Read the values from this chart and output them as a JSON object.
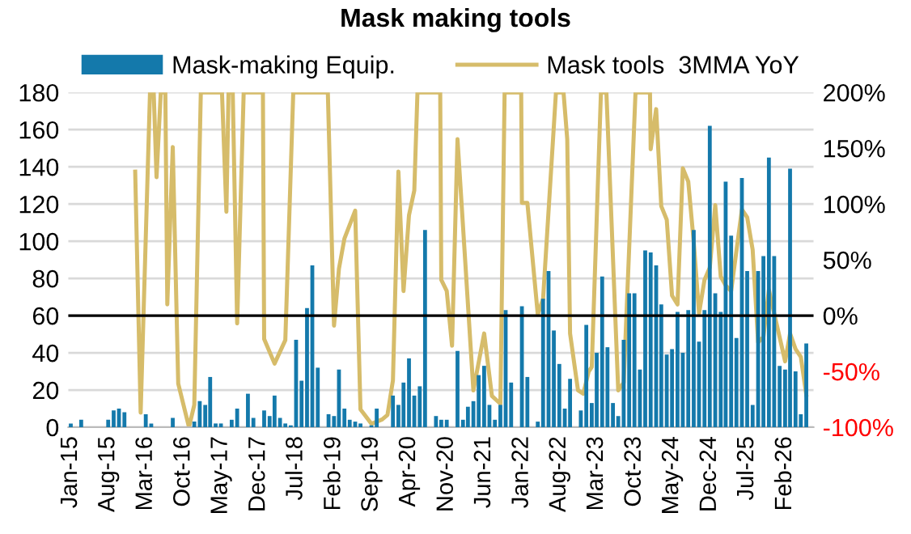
{
  "chart_data": {
    "type": "bar",
    "title": "Mask making tools",
    "x": [
      "2015-01",
      "2015-02",
      "2015-03",
      "2015-04",
      "2015-05",
      "2015-06",
      "2015-07",
      "2015-08",
      "2015-09",
      "2015-10",
      "2015-11",
      "2015-12",
      "2016-01",
      "2016-02",
      "2016-03",
      "2016-04",
      "2016-05",
      "2016-06",
      "2016-07",
      "2016-08",
      "2016-09",
      "2016-10",
      "2016-11",
      "2016-12",
      "2017-01",
      "2017-02",
      "2017-03",
      "2017-04",
      "2017-05",
      "2017-06",
      "2017-07",
      "2017-08",
      "2017-09",
      "2017-10",
      "2017-11",
      "2017-12",
      "2018-01",
      "2018-02",
      "2018-03",
      "2018-04",
      "2018-05",
      "2018-06",
      "2018-07",
      "2018-08",
      "2018-09",
      "2018-10",
      "2018-11",
      "2018-12",
      "2019-01",
      "2019-02",
      "2019-03",
      "2019-04",
      "2019-05",
      "2019-06",
      "2019-07",
      "2019-08",
      "2019-09",
      "2019-10",
      "2019-11",
      "2019-12",
      "2020-01",
      "2020-02",
      "2020-03",
      "2020-04",
      "2020-05",
      "2020-06",
      "2020-07",
      "2020-08",
      "2020-09",
      "2020-10",
      "2020-11",
      "2020-12",
      "2021-01",
      "2021-02",
      "2021-03",
      "2021-04",
      "2021-05",
      "2021-06",
      "2021-07",
      "2021-08",
      "2021-09",
      "2021-10",
      "2021-11",
      "2021-12",
      "2022-01",
      "2022-02",
      "2022-03",
      "2022-04",
      "2022-05",
      "2022-06",
      "2022-07",
      "2022-08",
      "2022-09",
      "2022-10",
      "2022-11",
      "2022-12",
      "2023-01",
      "2023-02",
      "2023-03",
      "2023-04",
      "2023-05",
      "2023-06",
      "2023-07",
      "2023-08",
      "2023-09",
      "2023-10",
      "2023-11",
      "2023-12",
      "2024-01",
      "2024-02",
      "2024-03",
      "2024-04",
      "2024-05",
      "2024-06",
      "2024-07",
      "2024-08",
      "2024-09",
      "2024-10",
      "2024-11",
      "2024-12",
      "2025-01",
      "2025-02",
      "2025-03",
      "2025-04",
      "2025-05",
      "2025-06",
      "2025-07",
      "2025-08",
      "2025-09",
      "2025-10",
      "2025-11",
      "2025-12",
      "2026-01",
      "2026-02",
      "2026-03",
      "2026-04",
      "2026-05",
      "2026-06"
    ],
    "series": [
      {
        "name": "Mask-making Equip.",
        "color": "#1479ab",
        "values": [
          2,
          0,
          4,
          0,
          0,
          0,
          0,
          4,
          9,
          10,
          8,
          0,
          0,
          0,
          7,
          2,
          0,
          0,
          0,
          5,
          0,
          0,
          0,
          3,
          14,
          12,
          27,
          2,
          2,
          0,
          4,
          10,
          0,
          18,
          5,
          0,
          9,
          6,
          17,
          5,
          2,
          1,
          47,
          25,
          64,
          87,
          32,
          0,
          7,
          6,
          31,
          10,
          4,
          3,
          2,
          0,
          1,
          10,
          0,
          0,
          17,
          12,
          24,
          37,
          17,
          22,
          106,
          0,
          6,
          4,
          4,
          0,
          41,
          4,
          11,
          14,
          28,
          33,
          12,
          4,
          12,
          63,
          24,
          0,
          65,
          27,
          0,
          3,
          69,
          84,
          52,
          34,
          10,
          26,
          0,
          9,
          55,
          13,
          40,
          81,
          43,
          13,
          6,
          47,
          72,
          72,
          31,
          95,
          94,
          87,
          66,
          39,
          42,
          62,
          40,
          63,
          106,
          46,
          63,
          162,
          72,
          62,
          132,
          103,
          48,
          134,
          84,
          12,
          84,
          92,
          145,
          92,
          33,
          31,
          139,
          30,
          7,
          45
        ]
      },
      {
        "name": "Mask tools  3MMA YoY",
        "type": "line",
        "axis": "y2",
        "color": "#d6bc6a",
        "x": [
          "2016-01",
          "2016-02",
          "2016-03-25",
          "2016-04-15",
          "2016-05",
          "2016-05-25",
          "2016-06-20",
          "2016-07",
          "2016-08",
          "2016-09",
          "2016-11",
          "2016-12",
          "2017-01-07",
          "2017-05-07",
          "2017-06",
          "2017-06-13",
          "2017-07-07",
          "2017-08",
          "2017-09-07",
          "2017-12-25",
          "2018-01",
          "2018-03",
          "2018-05",
          "2018-06-15",
          "2018-12-28",
          "2019-02",
          "2019-03",
          "2019-04",
          "2019-06",
          "2019-07",
          "2019-09",
          "2019-11",
          "2019-12",
          "2020-01",
          "2020-02",
          "2020-03",
          "2020-04",
          "2020-05",
          "2020-05-19",
          "2020-09-25",
          "2020-10",
          "2020-11",
          "2020-12",
          "2021-01",
          "2021-04",
          "2021-06",
          "2021-07-15",
          "2021-09",
          "2021-09-25",
          "2021-12-28",
          "2022-01",
          "2022-02",
          "2022-04",
          "2022-05",
          "2022-07-13",
          "2022-08-25",
          "2022-09-15",
          "2022-10",
          "2022-11-15",
          "2022-12-15",
          "2023-01-15",
          "2023-02",
          "2023-03-25",
          "2023-04-25",
          "2023-07",
          "2023-08",
          "2023-10-07",
          "2023-12-28",
          "2024-01",
          "2024-02",
          "2024-03",
          "2024-04",
          "2024-05",
          "2024-06",
          "2024-07",
          "2024-08",
          "2024-09",
          "2024-10",
          "2024-11",
          "2024-12",
          "2025-01",
          "2025-02",
          "2025-03",
          "2025-04",
          "2025-06",
          "2025-07",
          "2025-08",
          "2025-09",
          "2025-10",
          "2025-11",
          "2025-12",
          "2026-02",
          "2026-03",
          "2026-04",
          "2026-05",
          "2026-06"
        ],
        "values": [
          129,
          -87,
          200,
          200,
          124,
          200,
          200,
          10,
          151,
          -61,
          -100,
          -80,
          200,
          200,
          93,
          200,
          200,
          -7,
          200,
          200,
          -21,
          -43,
          -22,
          200,
          200,
          -9,
          42,
          69,
          94,
          -84,
          -97,
          -93,
          -89,
          -58,
          129,
          22,
          90,
          112,
          200,
          200,
          32,
          22,
          -27,
          158,
          -67,
          -16,
          -72,
          -79,
          200,
          200,
          101,
          101,
          1,
          15,
          200,
          200,
          158,
          -16,
          -67,
          -70,
          -50,
          -46,
          200,
          200,
          -67,
          -60,
          200,
          200,
          149,
          185,
          98,
          86,
          18,
          10,
          132,
          120,
          66,
          2,
          32,
          43,
          99,
          35,
          27,
          22,
          95,
          88,
          59,
          -24,
          -19,
          23,
          2,
          -41,
          -16,
          -30,
          -37,
          -71
        ]
      }
    ],
    "xlim": [
      "2014-12-18",
      "2026-07-12"
    ],
    "xticks": [
      {
        "value": "2015-01",
        "label": "Jan-15"
      },
      {
        "value": "2015-08",
        "label": "Aug-15"
      },
      {
        "value": "2016-03",
        "label": "Mar-16"
      },
      {
        "value": "2016-10",
        "label": "Oct-16"
      },
      {
        "value": "2017-05",
        "label": "May-17"
      },
      {
        "value": "2017-12",
        "label": "Dec-17"
      },
      {
        "value": "2018-07",
        "label": "Jul-18"
      },
      {
        "value": "2019-02",
        "label": "Feb-19"
      },
      {
        "value": "2019-09",
        "label": "Sep-19"
      },
      {
        "value": "2020-04",
        "label": "Apr-20"
      },
      {
        "value": "2020-11",
        "label": "Nov-20"
      },
      {
        "value": "2021-06",
        "label": "Jun-21"
      },
      {
        "value": "2022-01",
        "label": "Jan-22"
      },
      {
        "value": "2022-08",
        "label": "Aug-22"
      },
      {
        "value": "2023-03",
        "label": "Mar-23"
      },
      {
        "value": "2023-10",
        "label": "Oct-23"
      },
      {
        "value": "2024-05",
        "label": "May-24"
      },
      {
        "value": "2024-12",
        "label": "Dec-24"
      },
      {
        "value": "2025-07",
        "label": "Jul-25"
      },
      {
        "value": "2026-02",
        "label": "Feb-26"
      }
    ],
    "ylim": [
      0,
      180
    ],
    "yticks": [
      0,
      20,
      40,
      60,
      80,
      100,
      120,
      140,
      160,
      180
    ],
    "y2lim": [
      -100,
      200
    ],
    "y2ticks": [
      {
        "value": -100,
        "label": "-100%"
      },
      {
        "value": -50,
        "label": "-50%"
      },
      {
        "value": 0,
        "label": "0%"
      },
      {
        "value": 50,
        "label": "50%"
      },
      {
        "value": 100,
        "label": "100%"
      },
      {
        "value": 150,
        "label": "150%"
      },
      {
        "value": 200,
        "label": "200%"
      }
    ],
    "ref_lines": [
      {
        "axis": "y2",
        "value": 0,
        "color": "#000000"
      }
    ],
    "grid": "y",
    "legend": "top"
  }
}
